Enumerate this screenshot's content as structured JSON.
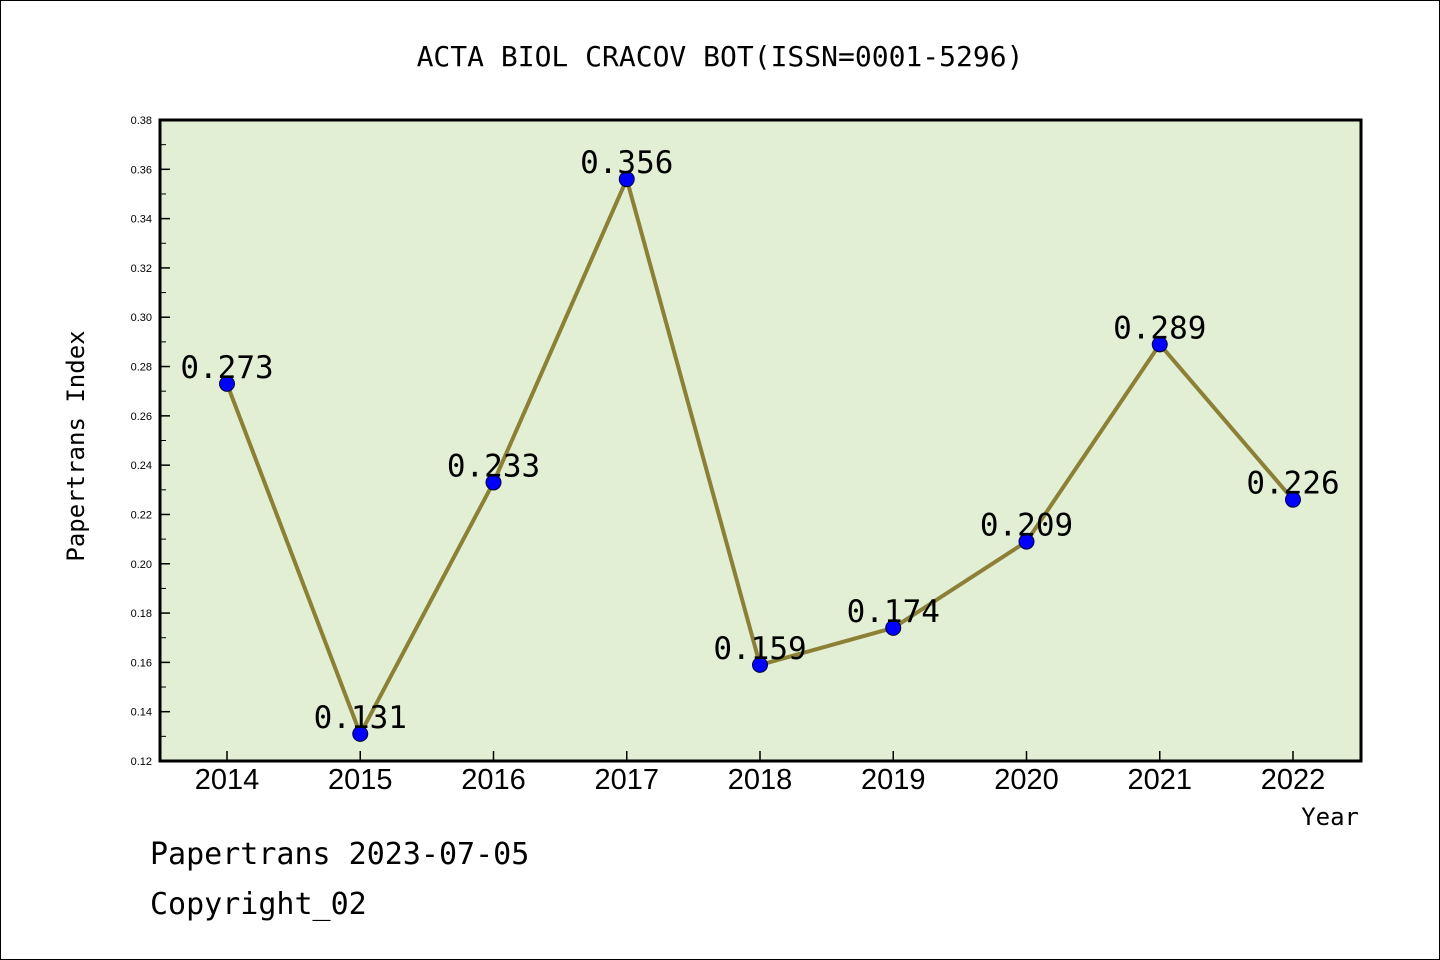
{
  "chart_data": {
    "type": "line",
    "title": "ACTA BIOL CRACOV BOT(ISSN=0001-5296)",
    "xlabel": "Year",
    "ylabel": "Papertrans Index",
    "x": [
      "2014",
      "2015",
      "2016",
      "2017",
      "2018",
      "2019",
      "2020",
      "2021",
      "2022"
    ],
    "series": [
      {
        "values": [
          0.273,
          0.131,
          0.233,
          0.356,
          0.159,
          0.174,
          0.209,
          0.289,
          0.226
        ],
        "labels": [
          "0.273",
          "0.131",
          "0.233",
          "0.356",
          "0.159",
          "0.174",
          "0.209",
          "0.289",
          "0.226"
        ]
      }
    ],
    "ylim": [
      0.12,
      0.38
    ],
    "yticks": [
      "0.12",
      "0.14",
      "0.16",
      "0.18",
      "0.20",
      "0.22",
      "0.24",
      "0.26",
      "0.28",
      "0.30",
      "0.32",
      "0.34",
      "0.36",
      "0.38"
    ],
    "grid": false,
    "colors": {
      "plot_background": "#e2efd4",
      "line": "#8b8035",
      "marker": "#0000ff"
    }
  },
  "footer": {
    "line1": "Papertrans 2023-07-05",
    "line2": "Copyright_02"
  }
}
